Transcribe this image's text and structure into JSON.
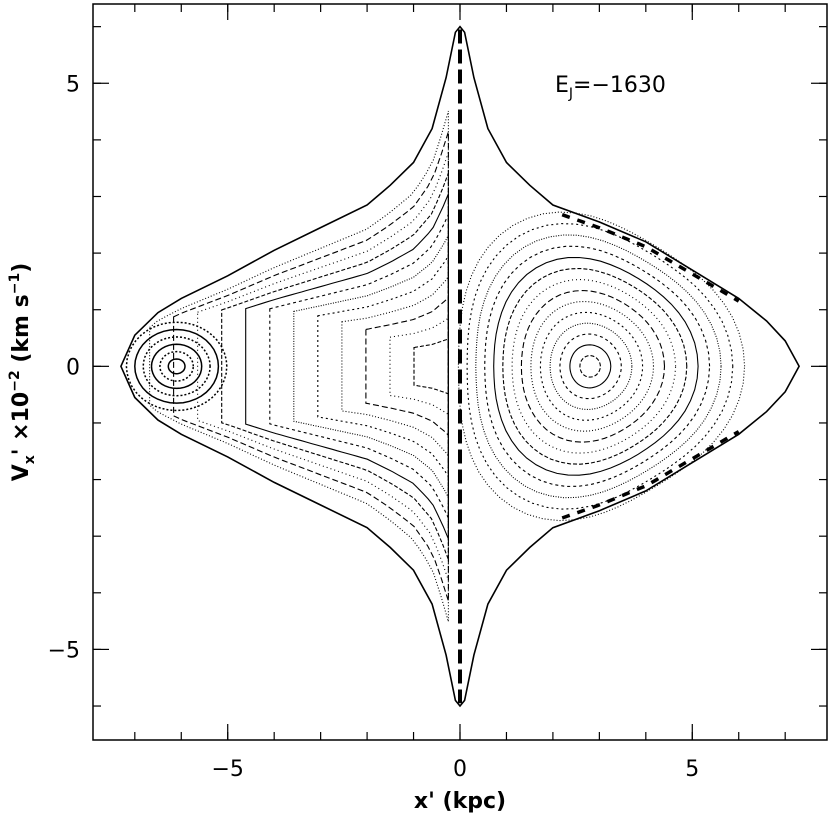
{
  "chart_data": {
    "type": "scatter",
    "title": "",
    "xlabel": {
      "main": "x'",
      "unit": "(kpc)"
    },
    "ylabel": {
      "base": "V",
      "sub": "x",
      "mid": "' ×10",
      "exp": "−2",
      "unit_open": " (km s",
      "unit_exp": "−1",
      "unit_close": ")"
    },
    "xlim": [
      -7.9,
      7.9
    ],
    "ylim": [
      -6.6,
      6.4
    ],
    "x_major_ticks": [
      -5,
      0,
      5
    ],
    "x_minor_step": 1,
    "y_major_ticks": [
      -5,
      0,
      5
    ],
    "y_minor_step": 1,
    "x_tick_labels": [
      "−5",
      "0",
      "5"
    ],
    "y_tick_labels": [
      "−5",
      "0",
      "5"
    ],
    "grid": false,
    "annotation": {
      "base": "E",
      "sub": "J",
      "text": "=−1630"
    },
    "zero_velocity_curve": {
      "description": "outer envelope",
      "points": [
        [
          -7.3,
          0.0
        ],
        [
          -7.0,
          0.55
        ],
        [
          -6.5,
          0.95
        ],
        [
          -6.0,
          1.2
        ],
        [
          -5.0,
          1.6
        ],
        [
          -4.0,
          2.05
        ],
        [
          -3.0,
          2.45
        ],
        [
          -2.0,
          2.85
        ],
        [
          -1.5,
          3.2
        ],
        [
          -1.0,
          3.6
        ],
        [
          -0.6,
          4.2
        ],
        [
          -0.3,
          5.1
        ],
        [
          -0.1,
          5.9
        ],
        [
          0.0,
          6.0
        ],
        [
          0.1,
          5.9
        ],
        [
          0.3,
          5.1
        ],
        [
          0.6,
          4.2
        ],
        [
          1.0,
          3.6
        ],
        [
          1.5,
          3.2
        ],
        [
          2.0,
          2.85
        ],
        [
          3.0,
          2.55
        ],
        [
          4.0,
          2.2
        ],
        [
          5.0,
          1.7
        ],
        [
          6.0,
          1.2
        ],
        [
          6.6,
          0.8
        ],
        [
          7.0,
          0.45
        ],
        [
          7.3,
          0.0
        ]
      ]
    },
    "right_island_center": [
      2.8,
      0.0
    ],
    "left_island_center": [
      -6.1,
      0.0
    ],
    "left_island_inner_center": [
      -5.9,
      0.2
    ],
    "central_separatrix_x": 0.0
  }
}
